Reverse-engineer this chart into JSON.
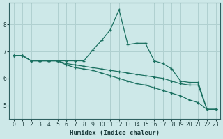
{
  "xlabel": "Humidex (Indice chaleur)",
  "bg_color": "#cde8e8",
  "grid_color": "#b0d0d0",
  "line_color": "#1a7060",
  "xlim": [
    -0.5,
    23.5
  ],
  "ylim": [
    4.5,
    8.8
  ],
  "xticks": [
    0,
    1,
    2,
    3,
    4,
    5,
    6,
    7,
    8,
    9,
    10,
    11,
    12,
    13,
    14,
    15,
    16,
    17,
    18,
    19,
    20,
    21,
    22,
    23
  ],
  "yticks": [
    5,
    6,
    7,
    8
  ],
  "line1_x": [
    0,
    1,
    2,
    3,
    4,
    5,
    6,
    7,
    8,
    9,
    10,
    11,
    12,
    13,
    14,
    15,
    16,
    17,
    18,
    19,
    20,
    21,
    22,
    23
  ],
  "line1_y": [
    6.85,
    6.85,
    6.65,
    6.65,
    6.65,
    6.65,
    6.65,
    6.65,
    6.65,
    7.05,
    7.4,
    7.8,
    8.55,
    7.25,
    7.3,
    7.3,
    6.65,
    6.55,
    6.35,
    5.9,
    5.85,
    5.85,
    4.85,
    4.85
  ],
  "line2_x": [
    0,
    1,
    2,
    3,
    4,
    5,
    6,
    7,
    8,
    9,
    10,
    11,
    12,
    13,
    14,
    15,
    16,
    17,
    18,
    19,
    20,
    21,
    22,
    23
  ],
  "line2_y": [
    6.85,
    6.85,
    6.65,
    6.65,
    6.65,
    6.65,
    6.55,
    6.5,
    6.45,
    6.4,
    6.35,
    6.3,
    6.25,
    6.2,
    6.15,
    6.1,
    6.05,
    6.0,
    5.9,
    5.8,
    5.75,
    5.75,
    4.85,
    4.85
  ],
  "line3_x": [
    0,
    1,
    2,
    3,
    4,
    5,
    6,
    7,
    8,
    9,
    10,
    11,
    12,
    13,
    14,
    15,
    16,
    17,
    18,
    19,
    20,
    21,
    22,
    23
  ],
  "line3_y": [
    6.85,
    6.85,
    6.65,
    6.65,
    6.65,
    6.65,
    6.5,
    6.4,
    6.35,
    6.3,
    6.2,
    6.1,
    6.0,
    5.9,
    5.8,
    5.75,
    5.65,
    5.55,
    5.45,
    5.35,
    5.2,
    5.1,
    4.85,
    4.85
  ]
}
